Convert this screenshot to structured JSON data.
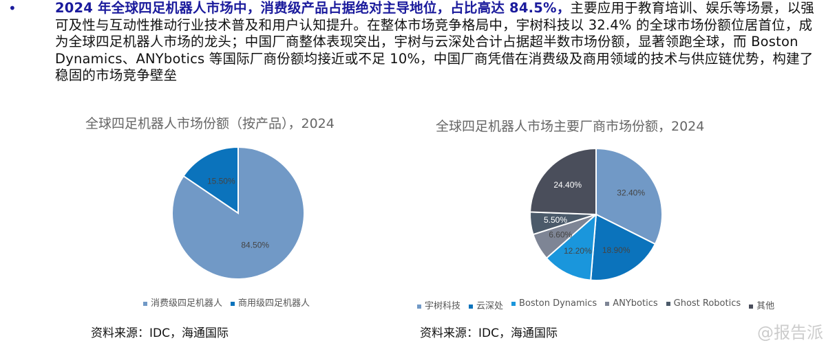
{
  "text": {
    "highlight": "2024 年全球四足机器人市场中，消费级产品占据绝对主导地位，占比高达 84.5%，",
    "rest": "主要应用于教育培训、娱乐等场景，以强可及性与互动性推动行业技术普及和用户认知提升。在整体市场竞争格局中，宇树科技以 32.4% 的全球市场份额位居首位，成为全球四足机器人市场的龙头；中国厂商整体表现突出，宇树与云深处合计占据超半数市场份额，显著领跑全球，而 Boston Dynamics、ANYbotics 等国际厂商份额均接近或不足 10%，中国厂商凭借在消费级及商用领域的技术与供应链优势，构建了稳固的市场竞争壁垒"
  },
  "bullet": "•",
  "chart_data": [
    {
      "type": "pie",
      "title": "全球四足机器人市场份额（按产品），2024",
      "legend_position": "bottom",
      "labels": [
        "消费级四足机器人",
        "商用级四足机器人"
      ],
      "values": [
        84.5,
        15.5
      ],
      "data_labels": [
        "84.50%",
        "15.50%"
      ],
      "colors": [
        "#7199c6",
        "#0b73bc"
      ],
      "label_colors": [
        "#444",
        "#444"
      ]
    },
    {
      "type": "pie",
      "title": "全球四足机器人市场主要厂商市场份额，2024",
      "legend_position": "bottom",
      "labels": [
        "宇树科技",
        "云深处",
        "Boston Dynamics",
        "ANYbotics",
        "Ghost Robotics",
        "其他"
      ],
      "values": [
        32.4,
        18.9,
        12.2,
        6.6,
        5.5,
        24.4
      ],
      "data_labels": [
        "32.40%",
        "18.90%",
        "12.20%",
        "6.60%",
        "5.50%",
        "24.40%"
      ],
      "colors": [
        "#7199c6",
        "#0b73bc",
        "#1a96dc",
        "#7e8595",
        "#4b5a6a",
        "#4a4e5b"
      ],
      "label_colors": [
        "#444",
        "#444",
        "#444",
        "#444",
        "#fff",
        "#fff"
      ]
    }
  ],
  "source_left": "资料来源：IDC，海通国际",
  "source_right": "资料来源：IDC，海通国际",
  "watermark": "@报告派"
}
